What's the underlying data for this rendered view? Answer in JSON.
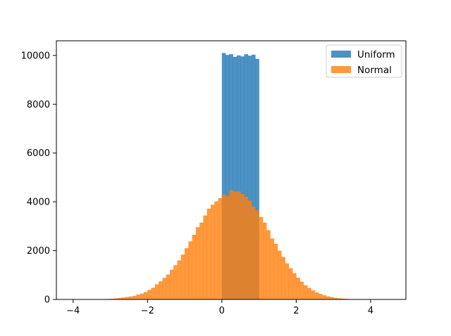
{
  "chart_data": {
    "type": "bar",
    "xlim": [
      -4.45,
      4.95
    ],
    "ylim": [
      0,
      10600
    ],
    "x_ticks": [
      -4,
      -2,
      0,
      2,
      4
    ],
    "x_tick_labels": [
      "−4",
      "−2",
      "0",
      "2",
      "4"
    ],
    "y_ticks": [
      0,
      2000,
      4000,
      6000,
      8000,
      10000
    ],
    "y_tick_labels": [
      "0",
      "2000",
      "4000",
      "6000",
      "8000",
      "10000"
    ],
    "legend_position": "upper right",
    "series": [
      {
        "name": "Uniform",
        "color": "#1f77b4",
        "opacity": 0.8,
        "bin_edges": [
          0.0,
          0.1,
          0.2,
          0.3,
          0.4,
          0.5,
          0.6,
          0.7,
          0.8,
          0.9,
          1.0
        ],
        "counts": [
          10100,
          10020,
          10050,
          9940,
          10000,
          9960,
          10050,
          9990,
          10030,
          9860
        ]
      },
      {
        "name": "Normal",
        "color": "#ff7f0e",
        "opacity": 0.8,
        "bin_start": -4.3,
        "bin_width": 0.1,
        "counts": [
          5,
          5,
          5,
          5,
          5,
          5,
          5,
          5,
          5,
          10,
          10,
          15,
          20,
          30,
          45,
          60,
          80,
          100,
          125,
          150,
          200,
          240,
          300,
          390,
          480,
          620,
          740,
          880,
          1020,
          1220,
          1400,
          1600,
          1840,
          2100,
          2380,
          2650,
          2960,
          3150,
          3440,
          3720,
          3880,
          4020,
          4150,
          4300,
          4230,
          4470,
          4420,
          4430,
          4320,
          4210,
          4050,
          3800,
          3650,
          3380,
          3150,
          2840,
          2500,
          2280,
          2000,
          1740,
          1480,
          1280,
          1080,
          890,
          730,
          580,
          470,
          370,
          290,
          230,
          175,
          130,
          100,
          70,
          50,
          35,
          25,
          15,
          10,
          8,
          5,
          5,
          5,
          5,
          5,
          5,
          5,
          5,
          5
        ]
      }
    ]
  }
}
